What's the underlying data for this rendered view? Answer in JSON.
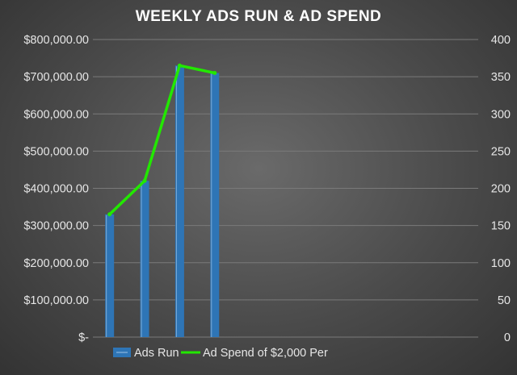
{
  "chart_data": {
    "type": "bar",
    "title": "WEEKLY ADS RUN & AD SPEND",
    "categories": [
      "",
      "",
      "",
      ""
    ],
    "series": [
      {
        "name": "Ads Run",
        "type": "bar",
        "axis": "left",
        "values": [
          330000,
          420000,
          730000,
          710000
        ],
        "color": "#2e75b6"
      },
      {
        "name": "Ad Spend of $2,000 Per",
        "type": "line",
        "axis": "right",
        "values": [
          165,
          210,
          365,
          355
        ],
        "color": "#22e800"
      }
    ],
    "y_left": {
      "min": 0,
      "max": 800000,
      "step": 100000,
      "tick_labels": [
        "$-",
        "$100,000.00",
        "$200,000.00",
        "$300,000.00",
        "$400,000.00",
        "$500,000.00",
        "$600,000.00",
        "$700,000.00",
        "$800,000.00"
      ]
    },
    "y_right": {
      "min": 0,
      "max": 400,
      "step": 50,
      "tick_labels": [
        "0",
        "50",
        "100",
        "150",
        "200",
        "250",
        "300",
        "350",
        "400"
      ]
    },
    "category_slots": 11,
    "grid": true,
    "legend": "bottom",
    "legend_items": [
      "Ads Run",
      "Ad Spend of $2,000 Per"
    ]
  }
}
